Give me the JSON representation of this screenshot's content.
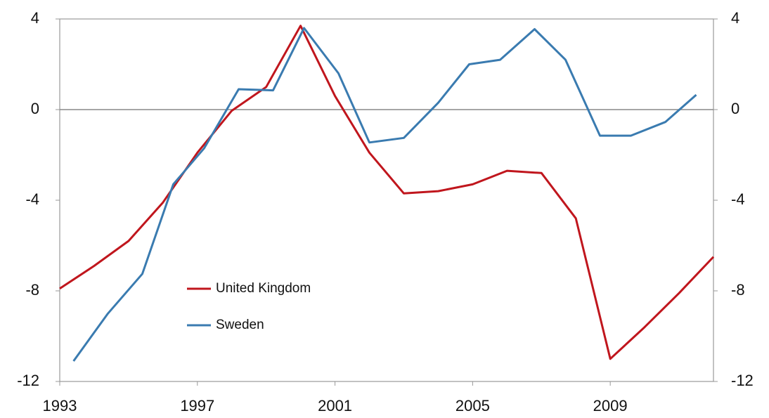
{
  "chart_data": {
    "type": "line",
    "series": [
      {
        "name": "United Kingdom",
        "color": "#c0161d",
        "x": [
          1993,
          1994,
          1995,
          1996,
          1997,
          1998,
          1999,
          2000,
          2001,
          2002,
          2003,
          2004,
          2005,
          2006,
          2007,
          2008,
          2009,
          2010,
          2011,
          2012
        ],
        "values": [
          -7.9,
          -6.9,
          -5.8,
          -4.1,
          -1.9,
          -0.05,
          1.0,
          3.7,
          0.6,
          -1.9,
          -3.7,
          -3.6,
          -3.3,
          -2.7,
          -2.8,
          -4.8,
          -11.0,
          -9.6,
          -8.1,
          -6.5
        ]
      },
      {
        "name": "Sweden",
        "color": "#3a7bb0",
        "x": [
          1993.4,
          1994.4,
          1995.4,
          1996.3,
          1997.2,
          1998.2,
          1999.2,
          2000.1,
          2001.1,
          2002.0,
          2003.0,
          2004.0,
          2004.9,
          2005.8,
          2006.8,
          2007.7,
          2008.7,
          2009.6,
          2010.6,
          2011.5
        ],
        "values": [
          -11.1,
          -9.0,
          -7.25,
          -3.3,
          -1.7,
          0.9,
          0.85,
          3.6,
          1.6,
          -1.45,
          -1.25,
          0.3,
          2.0,
          2.2,
          3.55,
          2.2,
          -1.15,
          -1.15,
          -0.55,
          0.65
        ]
      }
    ],
    "xlim": [
      1993,
      2012
    ],
    "xticks": [
      1993,
      1997,
      2001,
      2005,
      2009
    ],
    "ylim": [
      -12,
      4
    ],
    "yticks": [
      -12,
      -8,
      -4,
      0,
      4
    ],
    "y2lim": [
      -12,
      4
    ],
    "y2ticks": [
      -12,
      -8,
      -4,
      0,
      4
    ]
  }
}
